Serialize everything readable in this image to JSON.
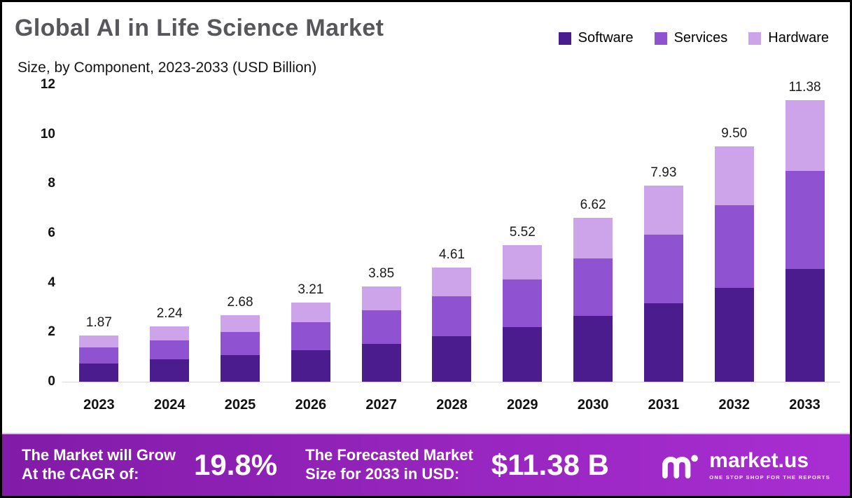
{
  "page": {
    "background": "#ffffff",
    "border_color": "#000000"
  },
  "chart_data": {
    "type": "bar",
    "stacked": true,
    "title": "Global AI in Life Science Market",
    "subtitle": "Size, by Component, 2023-2033 (USD Billion)",
    "categories": [
      "2023",
      "2024",
      "2025",
      "2026",
      "2027",
      "2028",
      "2029",
      "2030",
      "2031",
      "2032",
      "2033"
    ],
    "series": [
      {
        "name": "Software",
        "color": "#4b1c8e",
        "values": [
          0.75,
          0.9,
          1.07,
          1.28,
          1.54,
          1.84,
          2.21,
          2.65,
          3.17,
          3.8,
          4.55
        ]
      },
      {
        "name": "Services",
        "color": "#8f52d1",
        "values": [
          0.65,
          0.78,
          0.94,
          1.12,
          1.35,
          1.61,
          1.93,
          2.32,
          2.78,
          3.33,
          3.98
        ]
      },
      {
        "name": "Hardware",
        "color": "#cda3ea",
        "values": [
          0.47,
          0.56,
          0.67,
          0.81,
          0.96,
          1.16,
          1.38,
          1.65,
          1.98,
          2.37,
          2.85
        ]
      }
    ],
    "totals": [
      1.87,
      2.24,
      2.68,
      3.21,
      3.85,
      4.61,
      5.52,
      6.62,
      7.93,
      9.5,
      11.38
    ],
    "total_labels": [
      "1.87",
      "2.24",
      "2.68",
      "3.21",
      "3.85",
      "4.61",
      "5.52",
      "6.62",
      "7.93",
      "9.50",
      "11.38"
    ],
    "xlabel": "",
    "ylabel": "",
    "ylim": [
      0,
      12
    ],
    "yticks": [
      0,
      2,
      4,
      6,
      8,
      10,
      12
    ],
    "grid": false,
    "legend_position": "top-right"
  },
  "banner": {
    "cagr_label_line1": "The Market will Grow",
    "cagr_label_line2": "At the CAGR of:",
    "cagr_value": "19.8%",
    "forecast_label_line1": "The Forecasted Market",
    "forecast_label_line2": "Size for 2033 in USD:",
    "forecast_value": "$11.38 B",
    "brand_name": "market.us",
    "brand_tagline": "ONE STOP SHOP FOR THE REPORTS",
    "gradient_start": "#821ba8",
    "gradient_end": "#a92ed2"
  }
}
